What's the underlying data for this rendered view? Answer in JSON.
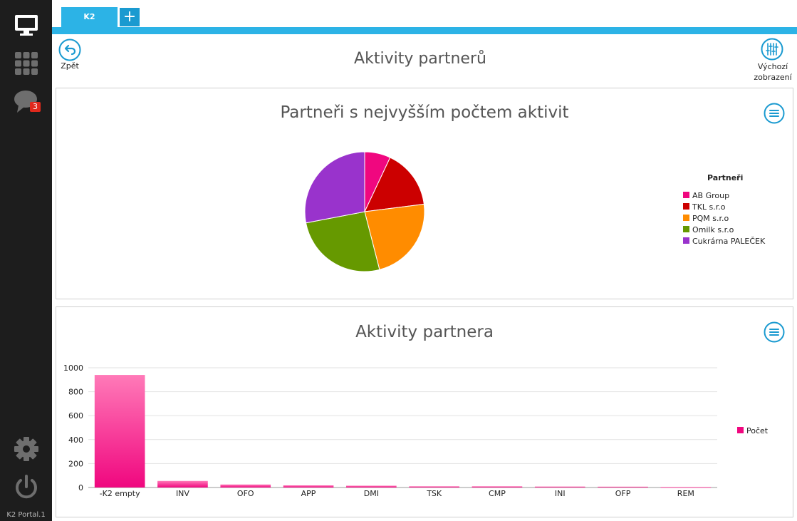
{
  "sidebar": {
    "icons": [
      "monitor-icon",
      "apps-grid-icon",
      "chat-icon",
      "gear-icon",
      "power-icon"
    ],
    "chat_badge": "3",
    "portal_label": "K2 Portal.1"
  },
  "tabs": {
    "active_label": "K2",
    "add_label": "+"
  },
  "header": {
    "back_label": "Zpět",
    "title": "Aktivity partnerů",
    "default_view_label_line1": "Výchozí",
    "default_view_label_line2": "zobrazení"
  },
  "pie_panel": {
    "title": "Partneři s nejvyšším počtem aktivit",
    "legend_title": "Partneři"
  },
  "bar_panel": {
    "title": "Aktivity partnera"
  },
  "chart_data": [
    {
      "type": "pie",
      "title": "Partneři s nejvyšším počtem aktivit",
      "legend_title": "Partneři",
      "legend_position": "right",
      "labels": [
        "AB Group",
        "TKL s.r.o",
        "PQM s.r.o",
        "Omilk s.r.o",
        "Cukrárna PALEČEK"
      ],
      "values": [
        7,
        16,
        23,
        26,
        28
      ],
      "colors": [
        "#f0077f",
        "#cc0000",
        "#ff8c00",
        "#669900",
        "#9933cc"
      ]
    },
    {
      "type": "bar",
      "title": "Aktivity partnera",
      "categories": [
        "-K2 empty",
        "INV",
        "OFO",
        "APP",
        "DMI",
        "TSK",
        "CMP",
        "INI",
        "OFP",
        "REM"
      ],
      "series": [
        {
          "name": "Počet",
          "values": [
            940,
            55,
            25,
            18,
            15,
            10,
            10,
            8,
            7,
            4
          ],
          "color": "#f0077f"
        }
      ],
      "ylim": [
        0,
        1000
      ],
      "yticks": [
        "0",
        "200",
        "400",
        "600",
        "800",
        "1000"
      ],
      "grid": true,
      "legend_position": "right"
    }
  ]
}
